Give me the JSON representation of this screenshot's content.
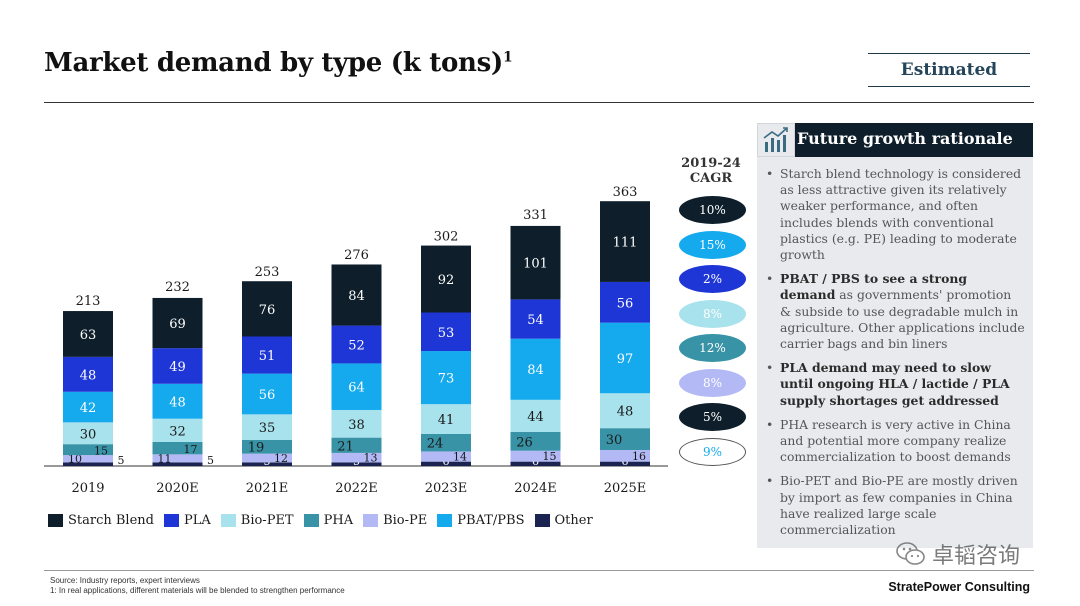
{
  "title": "Market demand by type (k tons)",
  "title_footnote_mark": "1",
  "estimated_label": "Estimated",
  "cagr": {
    "title_line1": "2019-24",
    "title_line2": "CAGR",
    "values": [
      {
        "series": "Starch Blend",
        "value": "10%",
        "fill": "#0e1f2b",
        "text": "#ffffff",
        "border": "#0e1f2b"
      },
      {
        "series": "PBAT/PBS",
        "value": "15%",
        "fill": "#15aaee",
        "text": "#ffffff",
        "border": "#15aaee"
      },
      {
        "series": "PLA",
        "value": "2%",
        "fill": "#1f36d6",
        "text": "#ffffff",
        "border": "#1f36d6"
      },
      {
        "series": "Bio-PET",
        "value": "8%",
        "fill": "#a8e2ec",
        "text": "#ffffff",
        "border": "#a8e2ec"
      },
      {
        "series": "PHA",
        "value": "12%",
        "fill": "#3993a6",
        "text": "#ffffff",
        "border": "#3993a6"
      },
      {
        "series": "Bio-PE",
        "value": "8%",
        "fill": "#b3b9f5",
        "text": "#ffffff",
        "border": "#b3b9f5"
      },
      {
        "series": "Other",
        "value": "5%",
        "fill": "#0e1f2b",
        "text": "#ffffff",
        "border": "#0e1f2b"
      },
      {
        "series": "Total",
        "value": "9%",
        "fill": "#ffffff",
        "text": "#15aaee",
        "border": "#555555"
      }
    ]
  },
  "chart_data": {
    "type": "bar",
    "stacked": true,
    "title": "Market demand by type (k tons)",
    "categories": [
      "2019",
      "2020E",
      "2021E",
      "2022E",
      "2023E",
      "2024E",
      "2025E"
    ],
    "totals": [
      213,
      232,
      253,
      276,
      302,
      331,
      363
    ],
    "series": [
      {
        "name": "Other",
        "color": "#1b2350",
        "values": [
          5,
          5,
          5,
          5,
          6,
          6,
          6
        ]
      },
      {
        "name": "Bio-PE",
        "color": "#b3b9f5",
        "values": [
          10,
          11,
          12,
          13,
          14,
          15,
          16
        ]
      },
      {
        "name": "PHA",
        "color": "#3993a6",
        "values": [
          15,
          17,
          19,
          21,
          24,
          26,
          30
        ]
      },
      {
        "name": "Bio-PET",
        "color": "#a8e2ec",
        "values": [
          30,
          32,
          35,
          38,
          41,
          44,
          48
        ]
      },
      {
        "name": "PBAT/PBS",
        "color": "#15aaee",
        "values": [
          42,
          48,
          56,
          64,
          73,
          84,
          97
        ]
      },
      {
        "name": "PLA",
        "color": "#1f36d6",
        "values": [
          48,
          49,
          51,
          52,
          53,
          54,
          56
        ]
      },
      {
        "name": "Starch Blend",
        "color": "#0e1f2b",
        "values": [
          63,
          69,
          76,
          84,
          92,
          101,
          111
        ]
      }
    ],
    "ylim": [
      0,
      370
    ],
    "grid": false,
    "legend_position": "bottom"
  },
  "legend": [
    {
      "label": "Starch Blend",
      "color": "#0e1f2b"
    },
    {
      "label": "PLA",
      "color": "#1f36d6"
    },
    {
      "label": "Bio-PET",
      "color": "#a8e2ec"
    },
    {
      "label": "PHA",
      "color": "#3993a6"
    },
    {
      "label": "Bio-PE",
      "color": "#b3b9f5"
    },
    {
      "label": "PBAT/PBS",
      "color": "#15aaee"
    },
    {
      "label": "Other",
      "color": "#1b2350"
    }
  ],
  "panel": {
    "title": "Future growth rationale",
    "icon": "growth-chart-icon",
    "bullets": [
      {
        "text": "Starch blend technology is considered as less attractive given its relatively weaker performance, and often includes blends with conventional plastics (e.g. PE) leading to moderate growth",
        "bold": ""
      },
      {
        "bold": "PBAT / PBS to see a strong demand",
        "text": " as governments' promotion & subside to use degradable mulch in agriculture. Other applications include carrier bags and bin liners"
      },
      {
        "bold": "PLA demand may need to slow until ongoing HLA / lactide / PLA supply shortages get addressed",
        "text": ""
      },
      {
        "text": "PHA research is very active in China and potential more company realize commercialization to boost demands",
        "bold": ""
      },
      {
        "text": "Bio-PET and Bio-PE are mostly driven by import as few companies in China have realized large scale commercialization",
        "bold": ""
      }
    ]
  },
  "source_line1": "Source: Industry reports, expert interviews",
  "source_line2": "1: In real applications, different materials will be blended to strengthen performance",
  "brand": "StratePower Consulting",
  "watermark": "卓韬咨询",
  "watermark_icon": "wechat-icon"
}
